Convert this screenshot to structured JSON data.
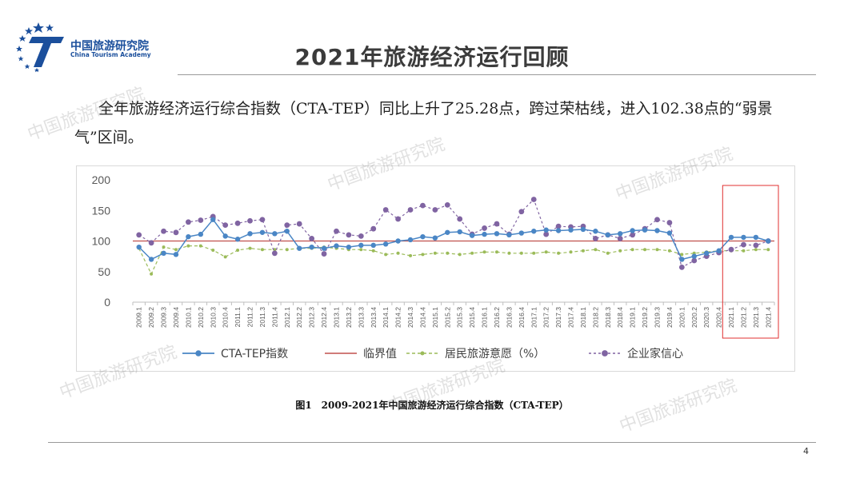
{
  "header": {
    "logo_cn": "中国旅游研究院",
    "logo_en": "China Tourism Academy",
    "title": "2021年旅游经济运行回顾"
  },
  "body_text": "全年旅游经济运行综合指数（CTA-TEP）同比上升了25.28点，跨过荣枯线，进入102.38点的“弱景气”区间。",
  "caption": "图1　2009-2021年中国旅游经济运行综合指数（CTA-TEP）",
  "page_number": "4",
  "watermark": "中国旅游研究院",
  "colors": {
    "cta_tep": "#4a86c5",
    "threshold": "#c0504d",
    "resident": "#9bbb59",
    "enterprise": "#8064a2",
    "highlight_box": "#e03030"
  },
  "chart_data": {
    "type": "line",
    "ylim": [
      0,
      200
    ],
    "yticks": [
      0,
      50,
      100,
      150,
      200
    ],
    "categories": [
      "2009.1",
      "2009.2",
      "2009.3",
      "2009.4",
      "2010.1",
      "2010.2",
      "2010.3",
      "2010.4",
      "2011.1",
      "2011.2",
      "2011.3",
      "2011.4",
      "2012.1",
      "2012.2",
      "2012.3",
      "2012.4",
      "2013.1",
      "2013.2",
      "2013.3",
      "2013.4",
      "2014.1",
      "2014.2",
      "2014.3",
      "2014.4",
      "2015.1",
      "2015.2",
      "2015.3",
      "2015.4",
      "2016.1",
      "2016.2",
      "2016.3",
      "2016.4",
      "2017.1",
      "2017.2",
      "2017.3",
      "2017.4",
      "2018.1",
      "2018.2",
      "2018.3",
      "2018.4",
      "2019.1",
      "2019.2",
      "2019.3",
      "2019.4",
      "2020.1",
      "2020.2",
      "2020.3",
      "2020.4",
      "2021.1",
      "2021.2",
      "2021.3",
      "2021.4"
    ],
    "highlight_range": [
      "2021.1",
      "2021.4"
    ],
    "legend_position": "bottom",
    "series": [
      {
        "name": "CTA-TEP指数",
        "style": "solid-dot",
        "values": [
          90,
          70,
          80,
          78,
          107,
          111,
          135,
          108,
          103,
          112,
          114,
          112,
          116,
          88,
          90,
          88,
          92,
          90,
          93,
          93,
          95,
          100,
          102,
          107,
          105,
          114,
          115,
          109,
          111,
          112,
          110,
          113,
          116,
          118,
          117,
          118,
          119,
          116,
          110,
          112,
          117,
          118,
          117,
          113,
          70,
          75,
          80,
          84,
          106,
          106,
          106,
          100
        ]
      },
      {
        "name": "临界值",
        "style": "line",
        "values": [
          100,
          100,
          100,
          100,
          100,
          100,
          100,
          100,
          100,
          100,
          100,
          100,
          100,
          100,
          100,
          100,
          100,
          100,
          100,
          100,
          100,
          100,
          100,
          100,
          100,
          100,
          100,
          100,
          100,
          100,
          100,
          100,
          100,
          100,
          100,
          100,
          100,
          100,
          100,
          100,
          100,
          100,
          100,
          100,
          100,
          100,
          100,
          100,
          100,
          100,
          100,
          100
        ]
      },
      {
        "name": "居民旅游意愿（%）",
        "style": "dashed-dot",
        "values": [
          88,
          46,
          90,
          86,
          92,
          92,
          85,
          74,
          85,
          88,
          86,
          86,
          86,
          88,
          88,
          90,
          88,
          86,
          86,
          84,
          78,
          80,
          76,
          78,
          80,
          80,
          78,
          80,
          82,
          82,
          80,
          80,
          80,
          82,
          80,
          82,
          84,
          86,
          80,
          84,
          86,
          86,
          86,
          84,
          78,
          80,
          82,
          84,
          84,
          84,
          86,
          86
        ]
      },
      {
        "name": "企业家信心",
        "style": "dashed-dot",
        "values": [
          110,
          97,
          116,
          114,
          131,
          134,
          140,
          126,
          129,
          133,
          135,
          80,
          126,
          128,
          104,
          79,
          116,
          110,
          108,
          120,
          151,
          136,
          151,
          158,
          151,
          159,
          136,
          111,
          121,
          128,
          111,
          148,
          168,
          111,
          124,
          123,
          124,
          104,
          110,
          104,
          110,
          120,
          135,
          130,
          57,
          68,
          75,
          81,
          86,
          94,
          93,
          100
        ]
      }
    ]
  }
}
